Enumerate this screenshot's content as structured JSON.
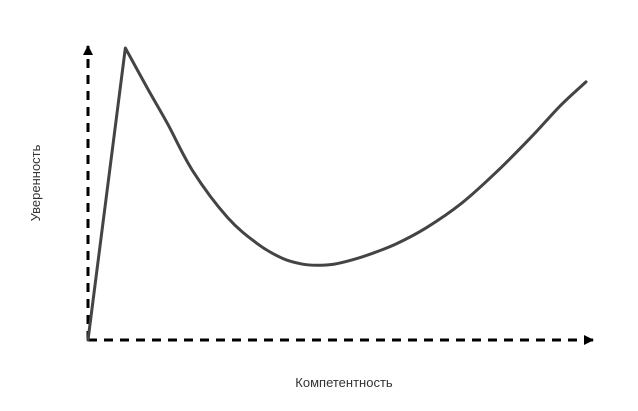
{
  "chart_data": {
    "type": "line",
    "title": "",
    "xlabel": "Компетентность",
    "ylabel": "Уверенность",
    "xlim": [
      0,
      100
    ],
    "ylim": [
      0,
      100
    ],
    "grid": false,
    "axes_style": "dashed-arrows",
    "tick_labels": false,
    "series": [
      {
        "color": "#444444",
        "x": [
          0,
          7.5,
          12,
          16,
          21,
          28,
          34,
          39,
          43,
          46,
          49.5,
          53,
          57,
          62,
          68,
          75,
          82,
          89,
          95,
          100
        ],
        "y": [
          0,
          100,
          86,
          74,
          58,
          42,
          33,
          28,
          26,
          25.6,
          26,
          27.4,
          29.6,
          33,
          38.5,
          46.8,
          57.5,
          69.5,
          80.5,
          88.4
        ]
      }
    ]
  }
}
